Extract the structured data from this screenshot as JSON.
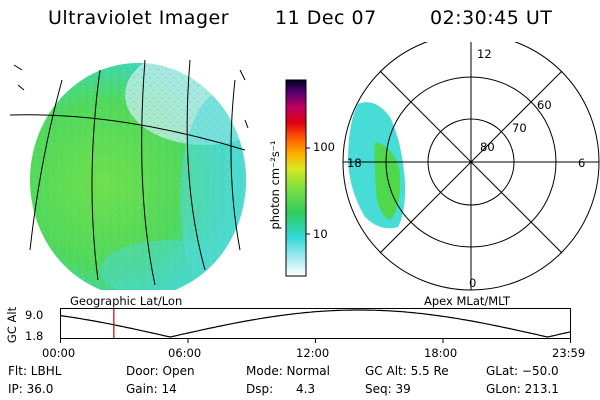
{
  "header": {
    "instrument": "Ultraviolet Imager",
    "date": "11 Dec 07",
    "time": "02:30:45 UT"
  },
  "colorbar": {
    "unit_label": "photon cm⁻²s⁻¹",
    "ticks": [
      {
        "label": "100",
        "value": 100
      },
      {
        "label": "10",
        "value": 10
      }
    ]
  },
  "polar_plot": {
    "lat_labels": [
      "60",
      "70",
      "80"
    ],
    "mlt_labels": {
      "top": "12",
      "right": "6",
      "bottom": "0",
      "left": "18"
    }
  },
  "panel_labels": {
    "left": "Geographic Lat/Lon",
    "right": "Apex MLat/MLT"
  },
  "altitude_plot": {
    "ylabel": "GC Alt",
    "yticks": [
      "9.0",
      "1.8"
    ],
    "xticks": [
      "00:00",
      "06:00",
      "12:00",
      "18:00",
      "23:59"
    ],
    "current_time_hours": 2.51
  },
  "info": {
    "row1": {
      "flt": "Flt: LBHL",
      "door": "Door: Open",
      "mode": "Mode: Normal",
      "gcalt": "GC Alt: 5.5 Re",
      "glat": "GLat: −50.0"
    },
    "row2": {
      "ip": "IP: 36.0",
      "gain": "Gain: 14",
      "dsp_label": "Dsp:",
      "dsp_value": "4.3",
      "seq": "Seq: 39",
      "glon": "GLon: 213.1"
    }
  },
  "colors": {
    "aurora_green": "#3cd63c",
    "aurora_cyan": "#3cd8d8",
    "marker_red": "#cc0000"
  }
}
